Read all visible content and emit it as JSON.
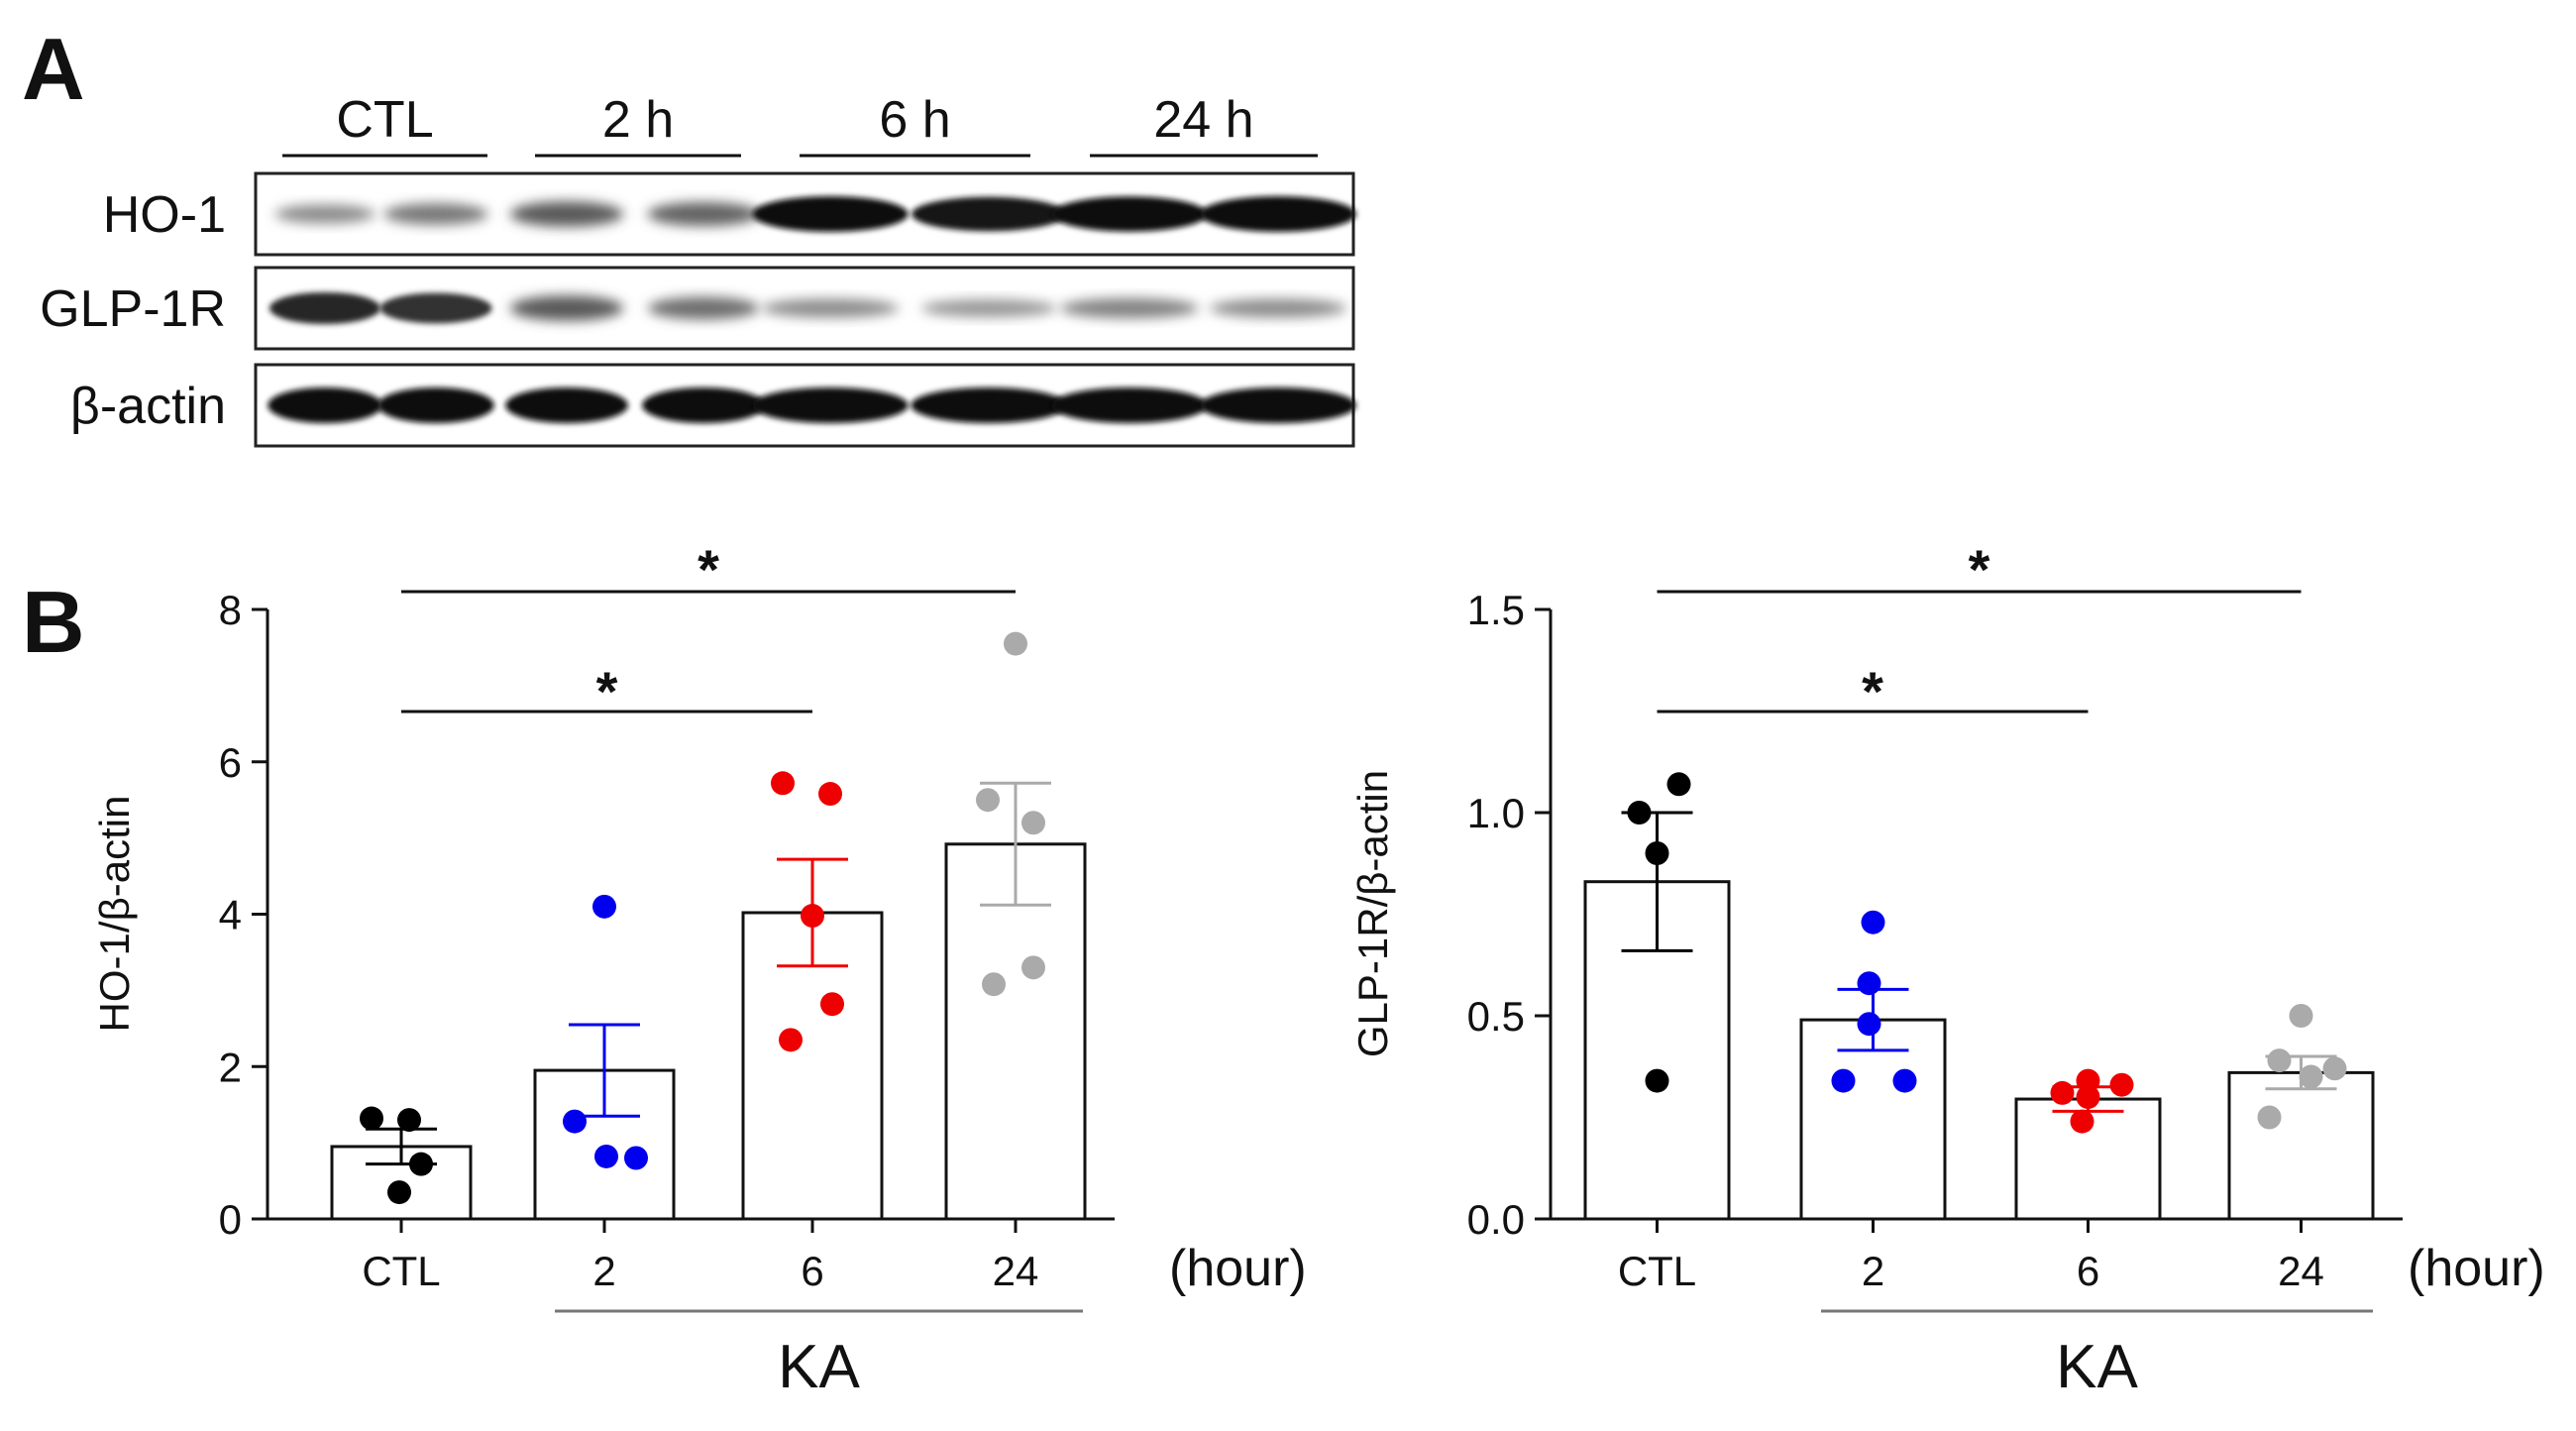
{
  "panel_labels": {
    "a": "A",
    "b": "B"
  },
  "blot": {
    "groups": [
      "CTL",
      "2 h",
      "6 h",
      "24 h"
    ],
    "rows": [
      {
        "label": "HO-1",
        "intensities": [
          0.35,
          0.45,
          0.6,
          0.55,
          1.0,
          0.95,
          0.98,
          1.0
        ]
      },
      {
        "label": "GLP-1R",
        "intensities": [
          0.85,
          0.8,
          0.6,
          0.5,
          0.35,
          0.3,
          0.4,
          0.35
        ]
      },
      {
        "label": "β-actin",
        "intensities": [
          1.0,
          1.0,
          1.0,
          1.0,
          1.0,
          1.0,
          1.0,
          1.0
        ]
      }
    ]
  },
  "colors": {
    "CTL": "#000000",
    "2": "#0000ee",
    "6": "#ee0000",
    "24": "#aaaaaa"
  },
  "chart_data": [
    {
      "type": "bar",
      "title": "",
      "xlabel": "(hour)",
      "ylabel": "HO-1/β-actin",
      "categories": [
        "CTL",
        "2",
        "6",
        "24"
      ],
      "group_label": "KA",
      "ylim": [
        0,
        8
      ],
      "yticks": [
        "0",
        "2",
        "4",
        "6",
        "8"
      ],
      "values": [
        0.95,
        1.95,
        4.02,
        4.92
      ],
      "errors": [
        0.23,
        0.6,
        0.7,
        0.8
      ],
      "points": [
        [
          1.32,
          1.3,
          0.72,
          0.35
        ],
        [
          4.1,
          1.28,
          0.82,
          0.8
        ],
        [
          5.72,
          5.58,
          3.98,
          2.82,
          2.35
        ],
        [
          7.55,
          5.5,
          5.2,
          3.3,
          3.08
        ]
      ],
      "significance": [
        {
          "from": "CTL",
          "to": "6",
          "label": "*"
        },
        {
          "from": "CTL",
          "to": "24",
          "label": "*"
        }
      ]
    },
    {
      "type": "bar",
      "title": "",
      "xlabel": "(hour)",
      "ylabel": "GLP-1R/β-actin",
      "categories": [
        "CTL",
        "2",
        "6",
        "24"
      ],
      "group_label": "KA",
      "ylim": [
        0,
        1.5
      ],
      "yticks": [
        "0.0",
        "0.5",
        "1.0",
        "1.5"
      ],
      "values": [
        0.83,
        0.49,
        0.295,
        0.36
      ],
      "errors": [
        0.17,
        0.075,
        0.03,
        0.04
      ],
      "points": [
        [
          1.07,
          1.0,
          0.9,
          0.34
        ],
        [
          0.73,
          0.58,
          0.48,
          0.34,
          0.34
        ],
        [
          0.34,
          0.33,
          0.31,
          0.3,
          0.24
        ],
        [
          0.5,
          0.39,
          0.37,
          0.35,
          0.25
        ]
      ],
      "significance": [
        {
          "from": "CTL",
          "to": "6",
          "label": "*"
        },
        {
          "from": "CTL",
          "to": "24",
          "label": "*"
        }
      ]
    }
  ]
}
